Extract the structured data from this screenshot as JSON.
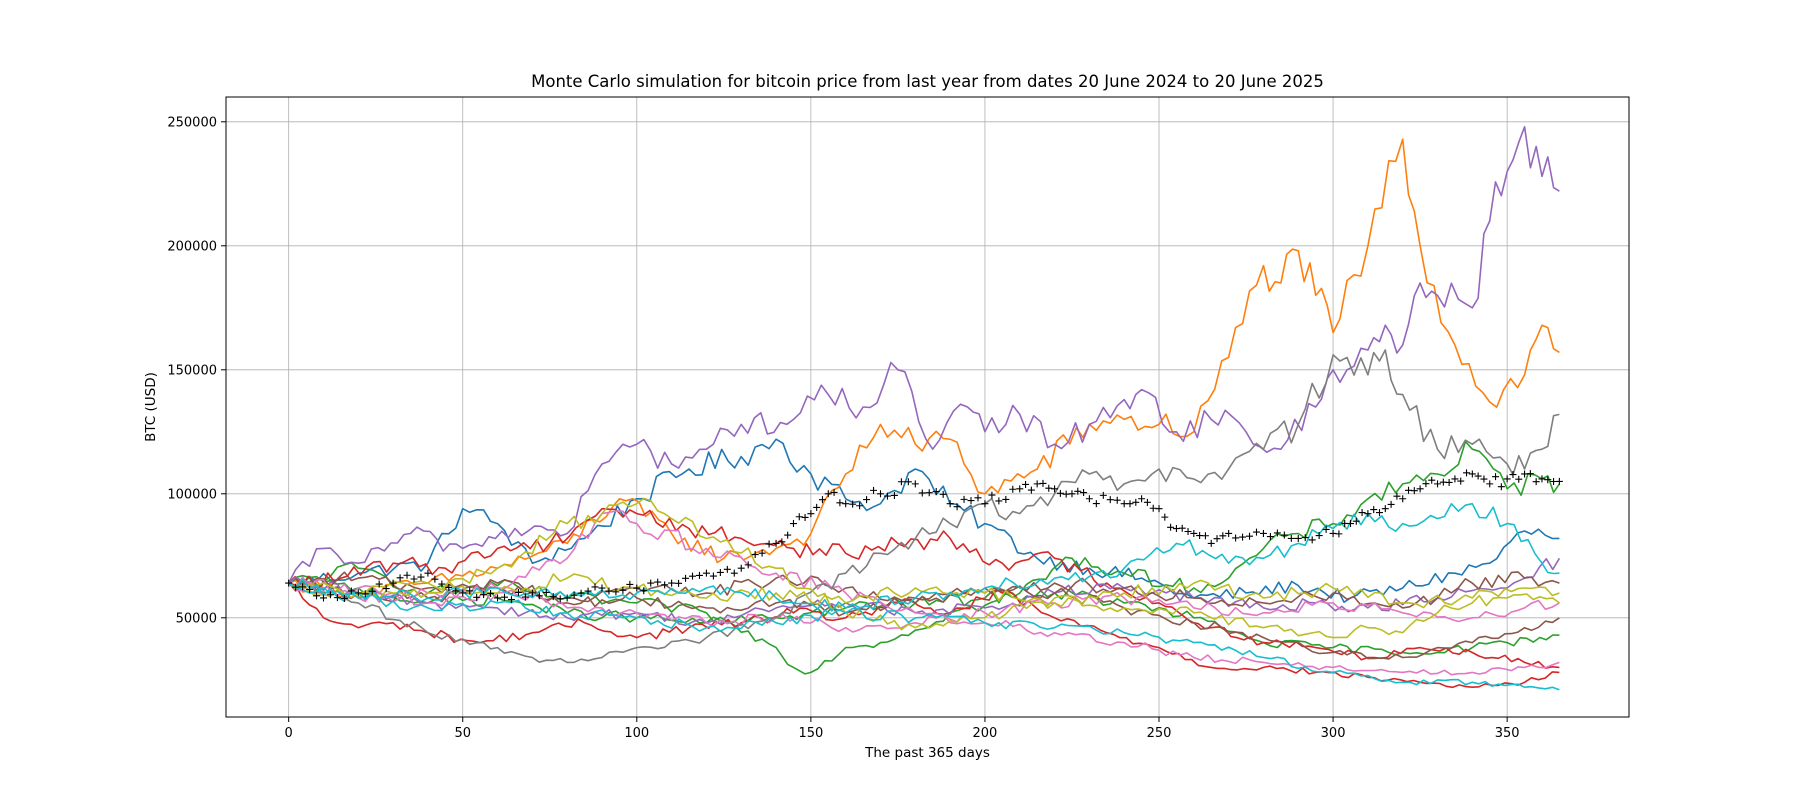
{
  "chart_data": {
    "type": "line",
    "title": "Monte Carlo simulation for bitcoin price from last year from dates 20 June 2024 to 20 June 2025",
    "xlabel": "The past 365 days",
    "ylabel": "BTC (USD)",
    "xlim": [
      -18,
      385
    ],
    "ylim": [
      10000,
      260000
    ],
    "xticks": [
      0,
      50,
      100,
      150,
      200,
      250,
      300,
      350
    ],
    "yticks": [
      50000,
      100000,
      150000,
      200000,
      250000
    ],
    "grid": true,
    "start_value": 64000,
    "series": [
      {
        "color": "#1f77b4",
        "x": [
          0,
          20,
          40,
          50,
          60,
          70,
          85,
          100,
          115,
          130,
          140,
          150,
          160,
          170,
          180,
          190,
          200,
          215,
          230,
          245,
          260,
          275,
          290,
          305,
          320,
          335,
          345,
          355,
          365
        ],
        "y": [
          64000,
          68000,
          72000,
          94000,
          88000,
          72000,
          82000,
          98000,
          110000,
          115000,
          122000,
          108000,
          98000,
          96000,
          110000,
          96000,
          88000,
          74000,
          70000,
          66000,
          58000,
          60000,
          63000,
          58000,
          62000,
          68000,
          72000,
          85000,
          82000
        ]
      },
      {
        "color": "#ff7f0e",
        "x": [
          0,
          20,
          40,
          60,
          80,
          95,
          110,
          125,
          140,
          150,
          160,
          170,
          180,
          190,
          200,
          215,
          230,
          240,
          250,
          260,
          270,
          280,
          285,
          290,
          295,
          300,
          310,
          320,
          325,
          335,
          345,
          355,
          360,
          365
        ],
        "y": [
          64000,
          60000,
          64000,
          70000,
          80000,
          98000,
          84000,
          74000,
          78000,
          84000,
          108000,
          128000,
          120000,
          122000,
          100000,
          110000,
          128000,
          130000,
          128000,
          125000,
          155000,
          192000,
          185000,
          198000,
          180000,
          165000,
          200000,
          243000,
          200000,
          160000,
          137000,
          148000,
          168000,
          157000
        ]
      },
      {
        "color": "#2ca02c",
        "x": [
          0,
          20,
          40,
          60,
          80,
          100,
          120,
          140,
          145,
          150,
          160,
          170,
          180,
          190,
          200,
          210,
          225,
          240,
          260,
          270,
          280,
          290,
          300,
          310,
          320,
          330,
          340,
          350,
          360,
          365
        ],
        "y": [
          64000,
          70000,
          60000,
          63000,
          58000,
          56000,
          52000,
          38000,
          30000,
          28000,
          38000,
          40000,
          45000,
          52000,
          55000,
          60000,
          74000,
          68000,
          62000,
          66000,
          78000,
          84000,
          88000,
          98000,
          104000,
          108000,
          118000,
          102000,
          106000,
          104000
        ]
      },
      {
        "color": "#2ca02c",
        "x": [
          0,
          20,
          40,
          60,
          80,
          100,
          120,
          140,
          160,
          180,
          200,
          220,
          240,
          260,
          280,
          300,
          320,
          340,
          350,
          365
        ],
        "y": [
          64000,
          62000,
          56000,
          58000,
          52000,
          50000,
          48000,
          50000,
          54000,
          56000,
          58000,
          60000,
          56000,
          50000,
          40000,
          38000,
          36000,
          38000,
          40000,
          43000
        ]
      },
      {
        "color": "#d62728",
        "x": [
          0,
          10,
          20,
          30,
          40,
          55,
          70,
          85,
          100,
          115,
          130,
          145,
          160,
          175,
          190,
          205,
          220,
          235,
          250,
          265,
          280,
          295,
          310,
          325,
          340,
          355,
          365
        ],
        "y": [
          64000,
          50000,
          46000,
          48000,
          44000,
          40000,
          44000,
          48000,
          42000,
          46000,
          48000,
          52000,
          50000,
          56000,
          52000,
          60000,
          50000,
          44000,
          38000,
          30000,
          30000,
          28000,
          26000,
          24000,
          22000,
          24000,
          28000
        ]
      },
      {
        "color": "#d62728",
        "x": [
          0,
          15,
          30,
          45,
          60,
          75,
          90,
          100,
          115,
          130,
          145,
          160,
          175,
          190,
          205,
          220,
          235,
          250,
          265,
          280,
          295,
          310,
          325,
          340,
          355,
          365
        ],
        "y": [
          64000,
          66000,
          72000,
          70000,
          78000,
          80000,
          94000,
          92000,
          86000,
          82000,
          78000,
          76000,
          80000,
          82000,
          72000,
          74000,
          64000,
          56000,
          46000,
          40000,
          38000,
          34000,
          38000,
          36000,
          32000,
          30000
        ]
      },
      {
        "color": "#9467bd",
        "x": [
          0,
          10,
          20,
          35,
          50,
          65,
          80,
          90,
          100,
          110,
          120,
          130,
          145,
          155,
          165,
          175,
          185,
          195,
          200,
          210,
          220,
          230,
          240,
          245,
          255,
          265,
          275,
          285,
          295,
          300,
          310,
          315,
          320,
          325,
          330,
          340,
          345,
          350,
          355,
          360,
          365
        ],
        "y": [
          64000,
          78000,
          72000,
          84000,
          78000,
          86000,
          84000,
          112000,
          120000,
          112000,
          118000,
          128000,
          130000,
          140000,
          135000,
          150000,
          118000,
          135000,
          125000,
          132000,
          120000,
          128000,
          138000,
          142000,
          125000,
          130000,
          125000,
          118000,
          135000,
          150000,
          158000,
          168000,
          160000,
          185000,
          180000,
          175000,
          210000,
          230000,
          248000,
          228000,
          222000
        ]
      },
      {
        "color": "#9467bd",
        "x": [
          0,
          20,
          40,
          60,
          80,
          100,
          120,
          140,
          160,
          180,
          200,
          220,
          240,
          260,
          280,
          295,
          310,
          330,
          350,
          365
        ],
        "y": [
          64000,
          60000,
          56000,
          54000,
          50000,
          52000,
          48000,
          54000,
          56000,
          52000,
          54000,
          60000,
          62000,
          58000,
          54000,
          56000,
          54000,
          58000,
          62000,
          74000
        ]
      },
      {
        "color": "#8c564b",
        "x": [
          0,
          20,
          40,
          60,
          80,
          100,
          120,
          140,
          160,
          180,
          200,
          220,
          240,
          260,
          280,
          300,
          320,
          340,
          355,
          365
        ],
        "y": [
          64000,
          60000,
          58000,
          62000,
          56000,
          58000,
          54000,
          56000,
          52000,
          58000,
          62000,
          60000,
          54000,
          48000,
          42000,
          36000,
          34000,
          40000,
          46000,
          50000
        ]
      },
      {
        "color": "#8c564b",
        "x": [
          0,
          20,
          40,
          60,
          80,
          100,
          120,
          140,
          160,
          180,
          200,
          220,
          240,
          260,
          280,
          300,
          320,
          340,
          355,
          365
        ],
        "y": [
          64000,
          66000,
          62000,
          64000,
          58000,
          62000,
          60000,
          66000,
          62000,
          56000,
          60000,
          64000,
          62000,
          58000,
          56000,
          60000,
          54000,
          64000,
          66000,
          64000
        ]
      },
      {
        "color": "#e377c2",
        "x": [
          0,
          20,
          40,
          60,
          80,
          90,
          100,
          120,
          140,
          160,
          180,
          200,
          220,
          240,
          260,
          280,
          300,
          320,
          340,
          355,
          365
        ],
        "y": [
          64000,
          58000,
          60000,
          62000,
          74000,
          92000,
          88000,
          78000,
          68000,
          60000,
          52000,
          48000,
          44000,
          40000,
          34000,
          32000,
          30000,
          28000,
          28000,
          30000,
          32000
        ]
      },
      {
        "color": "#e377c2",
        "x": [
          0,
          20,
          40,
          60,
          80,
          100,
          120,
          140,
          160,
          180,
          200,
          220,
          240,
          260,
          280,
          300,
          320,
          340,
          355,
          365
        ],
        "y": [
          64000,
          62000,
          56000,
          60000,
          54000,
          52000,
          48000,
          50000,
          46000,
          48000,
          52000,
          56000,
          58000,
          54000,
          52000,
          56000,
          52000,
          50000,
          54000,
          56000
        ]
      },
      {
        "color": "#7f7f7f",
        "x": [
          0,
          20,
          40,
          60,
          70,
          80,
          90,
          100,
          120,
          140,
          160,
          170,
          180,
          190,
          200,
          210,
          220,
          230,
          240,
          250,
          260,
          270,
          280,
          290,
          300,
          310,
          315,
          320,
          330,
          340,
          350,
          355,
          360,
          365
        ],
        "y": [
          64000,
          56000,
          44000,
          38000,
          34000,
          32000,
          34000,
          38000,
          42000,
          50000,
          68000,
          76000,
          82000,
          88000,
          96000,
          92000,
          100000,
          108000,
          104000,
          110000,
          106000,
          110000,
          118000,
          128000,
          156000,
          148000,
          158000,
          140000,
          118000,
          120000,
          112000,
          110000,
          118000,
          132000
        ]
      },
      {
        "color": "#bcbd22",
        "x": [
          0,
          20,
          40,
          60,
          80,
          90,
          100,
          110,
          120,
          140,
          160,
          180,
          200,
          220,
          240,
          260,
          280,
          300,
          310,
          320,
          330,
          340,
          350,
          365
        ],
        "y": [
          64000,
          58000,
          60000,
          70000,
          88000,
          92000,
          96000,
          90000,
          82000,
          70000,
          52000,
          46000,
          50000,
          58000,
          54000,
          52000,
          46000,
          42000,
          46000,
          44000,
          52000,
          56000,
          58000,
          56000
        ]
      },
      {
        "color": "#bcbd22",
        "x": [
          0,
          20,
          40,
          60,
          80,
          100,
          120,
          140,
          160,
          180,
          200,
          220,
          240,
          260,
          280,
          300,
          320,
          340,
          355,
          365
        ],
        "y": [
          64000,
          60000,
          64000,
          60000,
          66000,
          62000,
          58000,
          60000,
          56000,
          62000,
          60000,
          56000,
          60000,
          64000,
          58000,
          62000,
          56000,
          58000,
          62000,
          60000
        ]
      },
      {
        "color": "#17becf",
        "x": [
          0,
          20,
          40,
          60,
          80,
          100,
          120,
          140,
          160,
          180,
          200,
          220,
          240,
          255,
          270,
          280,
          290,
          300,
          310,
          320,
          330,
          340,
          350,
          360,
          365
        ],
        "y": [
          64000,
          60000,
          58000,
          62000,
          58000,
          60000,
          62000,
          58000,
          54000,
          58000,
          62000,
          66000,
          70000,
          80000,
          72000,
          74000,
          80000,
          86000,
          92000,
          88000,
          90000,
          96000,
          88000,
          72000,
          68000
        ]
      },
      {
        "color": "#17becf",
        "x": [
          0,
          20,
          40,
          60,
          80,
          100,
          120,
          140,
          160,
          180,
          200,
          220,
          240,
          260,
          280,
          300,
          320,
          340,
          355,
          365
        ],
        "y": [
          64000,
          58000,
          54000,
          56000,
          52000,
          50000,
          46000,
          48000,
          52000,
          50000,
          48000,
          46000,
          44000,
          40000,
          34000,
          28000,
          24000,
          24000,
          22000,
          21000
        ]
      },
      {
        "color": "#000000",
        "marker": "+",
        "x": [
          0,
          10,
          20,
          30,
          40,
          50,
          60,
          70,
          80,
          90,
          100,
          110,
          120,
          130,
          140,
          145,
          150,
          155,
          160,
          170,
          180,
          190,
          200,
          210,
          215,
          220,
          225,
          230,
          240,
          245,
          250,
          255,
          260,
          265,
          270,
          280,
          290,
          300,
          305,
          310,
          315,
          320,
          325,
          330,
          335,
          340,
          345,
          350,
          355,
          360,
          365
        ],
        "y": [
          64000,
          58000,
          60000,
          64000,
          68000,
          60000,
          58000,
          60000,
          58000,
          62000,
          62000,
          64000,
          68000,
          70000,
          80000,
          88000,
          92000,
          100000,
          96000,
          100000,
          104000,
          96000,
          96000,
          102000,
          104000,
          102000,
          100000,
          98000,
          96000,
          98000,
          94000,
          86000,
          84000,
          80000,
          84000,
          84000,
          82000,
          84000,
          88000,
          92000,
          94000,
          98000,
          102000,
          104000,
          106000,
          108000,
          104000,
          106000,
          108000,
          106000,
          105000
        ]
      }
    ]
  }
}
